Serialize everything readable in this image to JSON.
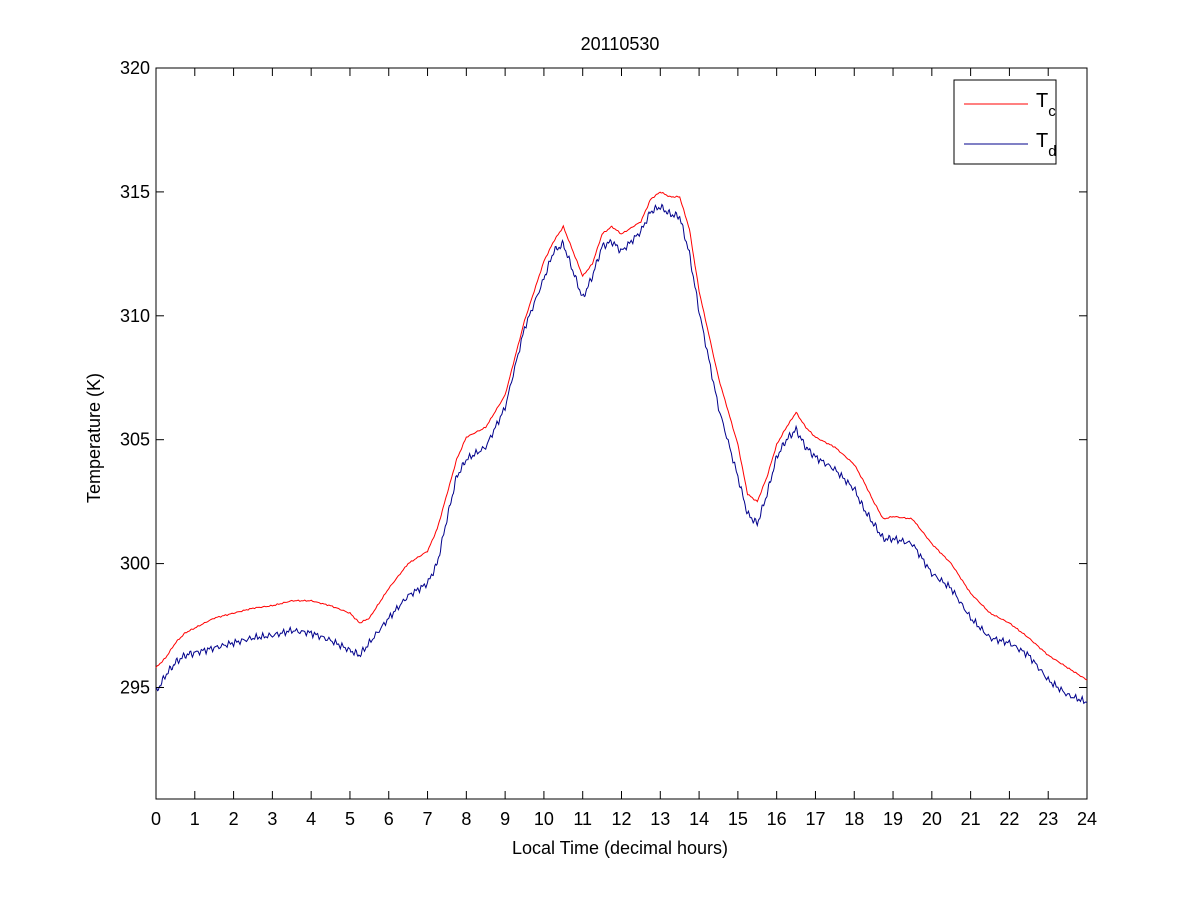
{
  "chart_data": {
    "type": "line",
    "title": "20110530",
    "xlabel": "Local Time (decimal hours)",
    "ylabel": "Temperature (K)",
    "xlim": [
      0,
      24
    ],
    "ylim": [
      290.5,
      320
    ],
    "xticks": [
      0,
      1,
      2,
      3,
      4,
      5,
      6,
      7,
      8,
      9,
      10,
      11,
      12,
      13,
      14,
      15,
      16,
      17,
      18,
      19,
      20,
      21,
      22,
      23,
      24
    ],
    "yticks": [
      295,
      300,
      305,
      310,
      315,
      320
    ],
    "grid": false,
    "legend_position": "top-right",
    "series": [
      {
        "name_main": "T",
        "name_sub": "c",
        "color": "#ff0000",
        "x": [
          0,
          0.25,
          0.5,
          0.75,
          1,
          1.5,
          2,
          2.5,
          3,
          3.5,
          4,
          4.5,
          5,
          5.25,
          5.5,
          6,
          6.5,
          7,
          7.25,
          7.5,
          7.75,
          8,
          8.5,
          9,
          9.5,
          10,
          10.25,
          10.5,
          10.75,
          11,
          11.25,
          11.5,
          11.75,
          12,
          12.5,
          12.75,
          13,
          13.25,
          13.5,
          13.75,
          14,
          14.5,
          15,
          15.25,
          15.5,
          15.75,
          16,
          16.25,
          16.5,
          16.75,
          17,
          17.5,
          18,
          18.25,
          18.5,
          18.75,
          19,
          19.5,
          20,
          20.5,
          21,
          21.5,
          22,
          22.5,
          23,
          23.5,
          24
        ],
        "y": [
          295.8,
          296.2,
          296.8,
          297.2,
          297.4,
          297.8,
          298.0,
          298.2,
          298.3,
          298.5,
          298.5,
          298.3,
          298.0,
          297.6,
          297.8,
          299.0,
          300.0,
          300.5,
          301.4,
          302.8,
          304.2,
          305.1,
          305.5,
          306.8,
          309.8,
          312.2,
          313.0,
          313.6,
          312.6,
          311.6,
          312.1,
          313.3,
          313.6,
          313.3,
          313.8,
          314.7,
          315.0,
          314.8,
          314.8,
          313.5,
          311.0,
          307.5,
          304.8,
          302.8,
          302.5,
          303.5,
          304.8,
          305.5,
          306.1,
          305.5,
          305.1,
          304.7,
          304.0,
          303.3,
          302.5,
          301.8,
          301.9,
          301.8,
          300.8,
          300.0,
          298.8,
          298.0,
          297.6,
          297.0,
          296.3,
          295.8,
          295.3
        ]
      },
      {
        "name_main": "T",
        "name_sub": "d",
        "color": "#00008b",
        "x": [
          0,
          0.25,
          0.5,
          0.75,
          1,
          1.5,
          2,
          2.5,
          3,
          3.5,
          4,
          4.5,
          5,
          5.25,
          5.5,
          6,
          6.5,
          7,
          7.25,
          7.5,
          7.75,
          8,
          8.5,
          9,
          9.5,
          10,
          10.25,
          10.5,
          10.75,
          11,
          11.25,
          11.5,
          11.75,
          12,
          12.5,
          12.75,
          13,
          13.25,
          13.5,
          13.75,
          14,
          14.5,
          15,
          15.25,
          15.5,
          15.75,
          16,
          16.25,
          16.5,
          16.75,
          17,
          17.5,
          18,
          18.25,
          18.5,
          18.75,
          19,
          19.5,
          20,
          20.5,
          21,
          21.5,
          22,
          22.5,
          23,
          23.5,
          24
        ],
        "y": [
          294.8,
          295.5,
          296.0,
          296.3,
          296.4,
          296.6,
          296.8,
          297.0,
          297.1,
          297.3,
          297.2,
          296.9,
          296.5,
          296.3,
          296.8,
          297.8,
          298.7,
          299.2,
          300.0,
          301.8,
          303.5,
          304.2,
          304.7,
          306.3,
          309.5,
          311.5,
          312.6,
          312.9,
          311.8,
          310.7,
          311.6,
          312.8,
          313.0,
          312.6,
          313.4,
          314.2,
          314.4,
          314.1,
          314.0,
          312.5,
          310.2,
          306.3,
          303.5,
          302.0,
          301.6,
          302.8,
          304.3,
          305.0,
          305.4,
          304.7,
          304.3,
          303.8,
          303.0,
          302.2,
          301.6,
          301.0,
          301.0,
          300.8,
          299.6,
          299.0,
          297.8,
          297.0,
          296.8,
          296.3,
          295.3,
          294.7,
          294.4
        ]
      }
    ]
  }
}
